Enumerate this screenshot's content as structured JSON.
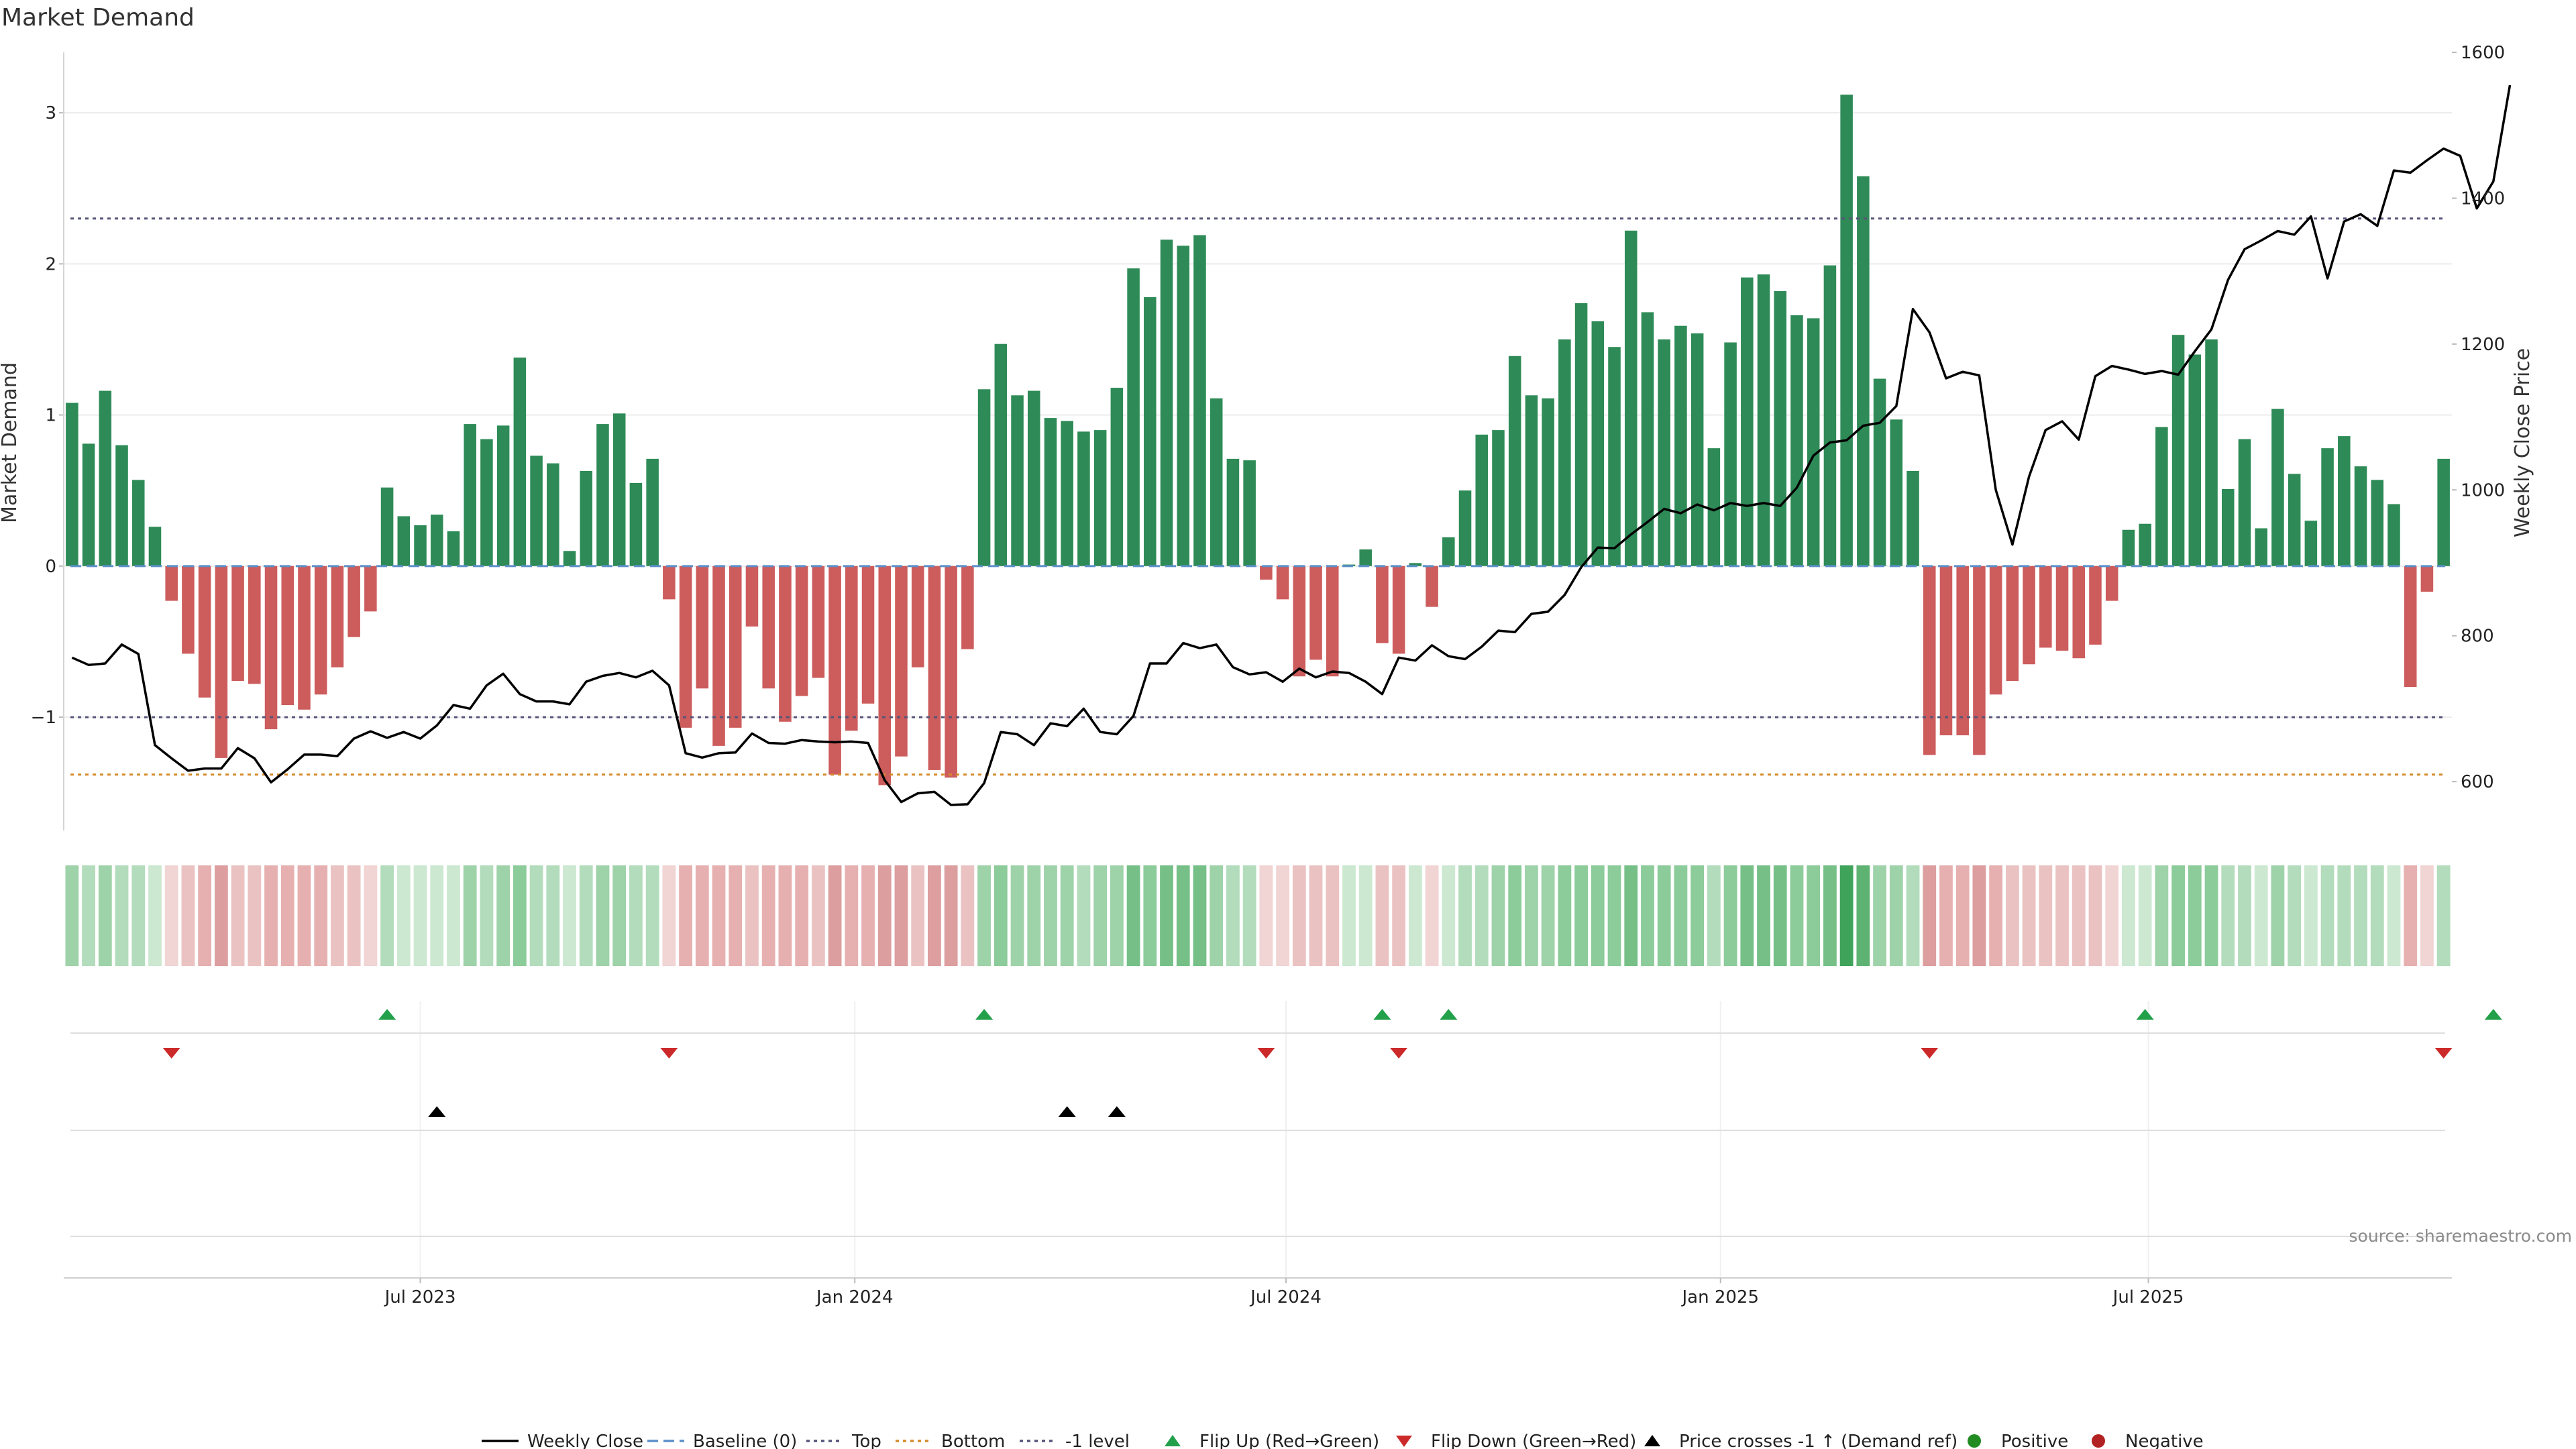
{
  "chart_data": {
    "type": "bar",
    "title": "Market Demand",
    "ylabel": "Market Demand",
    "y2label": "Weekly Close Price",
    "ylim": [
      -1.75,
      3.4
    ],
    "y2lim": [
      533,
      1600
    ],
    "yticks": [
      -1,
      0,
      1,
      2,
      3
    ],
    "y2ticks": [
      600,
      800,
      1000,
      1200,
      1400,
      1600
    ],
    "ytick_labels": [
      "−1",
      "0",
      "1",
      "2",
      "3"
    ],
    "x_tick_labels": [
      "Jul 2023",
      "Jan 2024",
      "Jul 2024",
      "Jan 2025",
      "Jul 2025"
    ],
    "x_tick_index": [
      21.5,
      47.7,
      73.7,
      99.9,
      125.7
    ],
    "levels": {
      "top": 2.3,
      "bottom": -1.38,
      "minus_one": -1,
      "baseline": 0
    },
    "colors": {
      "positive": "#2e8b57",
      "negative": "#cd5c5c",
      "price": "#000000",
      "top": "#55557a",
      "bottom": "#d58a2a",
      "baseline": "#5b8fc9",
      "flip_up": "#22a04a",
      "flip_down": "#cc2a2a",
      "cross": "#000000"
    },
    "series": [
      {
        "name": "Market Demand",
        "values": [
          1.08,
          0.81,
          1.16,
          0.8,
          0.57,
          0.26,
          -0.23,
          -0.58,
          -0.87,
          -1.27,
          -0.76,
          -0.78,
          -1.08,
          -0.92,
          -0.95,
          -0.85,
          -0.67,
          -0.47,
          -0.3,
          0.52,
          0.33,
          0.27,
          0.34,
          0.23,
          0.94,
          0.84,
          0.93,
          1.38,
          0.73,
          0.68,
          0.1,
          0.63,
          0.94,
          1.01,
          0.55,
          0.71,
          -0.22,
          -1.07,
          -0.81,
          -1.19,
          -1.07,
          -0.4,
          -0.81,
          -1.03,
          -0.86,
          -0.74,
          -1.38,
          -1.09,
          -0.91,
          -1.45,
          -1.26,
          -0.67,
          -1.35,
          -1.4,
          -0.55,
          1.17,
          1.47,
          1.13,
          1.16,
          0.98,
          0.96,
          0.89,
          0.9,
          1.18,
          1.97,
          1.78,
          2.16,
          2.12,
          2.19,
          1.11,
          0.71,
          0.7,
          -0.09,
          -0.22,
          -0.73,
          -0.62,
          -0.73,
          0.01,
          0.11,
          -0.51,
          -0.58,
          0.02,
          -0.27,
          0.19,
          0.5,
          0.87,
          0.9,
          1.39,
          1.13,
          1.11,
          1.5,
          1.74,
          1.62,
          1.45,
          2.22,
          1.68,
          1.5,
          1.59,
          1.54,
          0.78,
          1.48,
          1.91,
          1.93,
          1.82,
          1.66,
          1.64,
          1.99,
          3.12,
          2.58,
          1.24,
          0.97,
          0.63,
          -1.25,
          -1.12,
          -1.12,
          -1.25,
          -0.85,
          -0.76,
          -0.65,
          -0.54,
          -0.56,
          -0.61,
          -0.52,
          -0.23,
          0.24,
          0.28,
          0.92,
          1.53,
          1.4,
          1.5,
          0.51,
          0.84,
          0.25,
          1.04,
          0.61,
          0.3,
          0.78,
          0.86,
          0.66,
          0.57,
          0.41,
          -0.8,
          -0.17,
          0.71
        ]
      },
      {
        "name": "Weekly Close",
        "values": [
          770,
          760,
          762,
          788,
          775,
          650,
          632,
          615,
          618,
          618,
          646,
          632,
          599,
          617,
          637,
          637,
          635,
          659,
          669,
          660,
          668,
          659,
          677,
          705,
          700,
          732,
          748,
          720,
          710,
          710,
          706,
          737,
          745,
          749,
          743,
          752,
          732,
          639,
          633,
          639,
          640,
          666,
          653,
          652,
          657,
          655,
          654,
          655,
          653,
          602,
          572,
          584,
          586,
          568,
          569,
          598,
          668,
          665,
          650,
          680,
          676,
          700,
          668,
          665,
          690,
          762,
          762,
          790,
          783,
          788,
          757,
          747,
          750,
          737,
          755,
          743,
          751,
          749,
          737,
          720,
          770,
          766,
          787,
          772,
          768,
          785,
          807,
          805,
          830,
          833,
          856,
          894,
          921,
          920,
          939,
          956,
          974,
          968,
          980,
          972,
          982,
          978,
          982,
          978,
          1003,
          1047,
          1065,
          1068,
          1088,
          1092,
          1115,
          1248,
          1216,
          1153,
          1162,
          1157,
          1000,
          925,
          1018,
          1082,
          1094,
          1069,
          1156,
          1170,
          1165,
          1159,
          1163,
          1158,
          1190,
          1220,
          1288,
          1330,
          1342,
          1355,
          1350,
          1375,
          1290,
          1368,
          1378,
          1362,
          1438,
          1435,
          1452,
          1468,
          1458,
          1386,
          1423,
          1555
        ]
      }
    ],
    "flip_up_index": [
      19,
      55,
      79,
      83,
      125,
      146
    ],
    "flip_down_index": [
      6,
      36,
      72,
      80,
      112,
      143
    ],
    "price_cross_index": [
      22,
      60,
      63
    ],
    "legend_position": "bottom",
    "legend": [
      "Weekly Close",
      "Baseline (0)",
      "Top",
      "Bottom",
      "-1 level",
      "Flip Up (Red→Green)",
      "Flip Down (Green→Red)",
      "Price crosses -1 ↑ (Demand ref)",
      "Positive",
      "Negative"
    ]
  },
  "source": "source: sharemaestro.com"
}
